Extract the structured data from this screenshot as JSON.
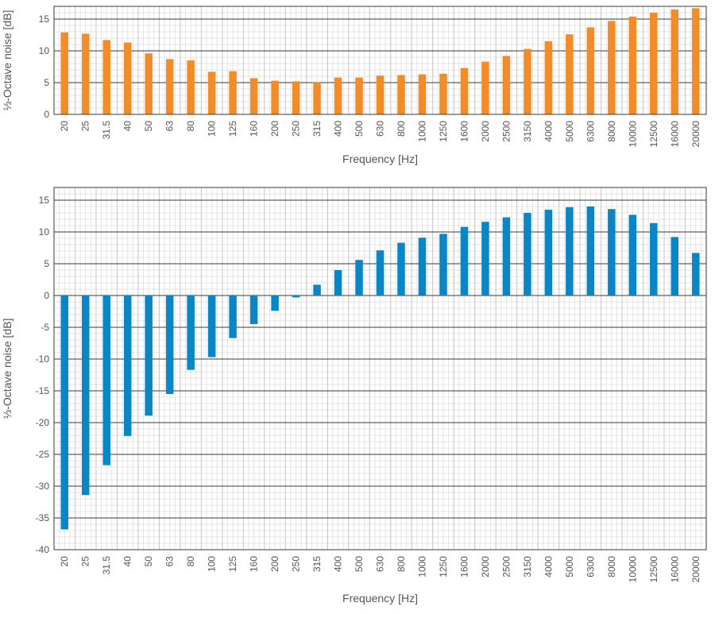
{
  "chart_data": [
    {
      "type": "bar",
      "color": "#F28C28",
      "xlabel": "Frequency [Hz]",
      "ylabel": "⅓-Octave noise [dB]",
      "ylim": [
        0,
        17
      ],
      "yticks": [
        0,
        5,
        10,
        15
      ],
      "ytick_labels": [
        "0",
        "5",
        "10",
        "15"
      ],
      "categories": [
        "20",
        "25",
        "31.5",
        "40",
        "50",
        "63",
        "80",
        "100",
        "125",
        "160",
        "200",
        "250",
        "315",
        "400",
        "500",
        "630",
        "800",
        "1000",
        "1250",
        "1600",
        "2000",
        "2500",
        "3150",
        "4000",
        "5000",
        "6300",
        "8000",
        "10000",
        "12500",
        "16000",
        "20000"
      ],
      "values": [
        12.9,
        12.7,
        11.7,
        11.3,
        9.6,
        8.7,
        8.5,
        6.7,
        6.8,
        5.7,
        5.3,
        5.2,
        5.1,
        5.8,
        5.8,
        6.1,
        6.2,
        6.3,
        6.4,
        7.3,
        8.3,
        9.2,
        10.3,
        11.5,
        12.6,
        13.7,
        14.7,
        15.4,
        16.0,
        16.5,
        16.7
      ],
      "grid": true
    },
    {
      "type": "bar",
      "color": "#0A86C6",
      "xlabel": "Frequency [Hz]",
      "ylabel": "⅓-Octave noise [dB]",
      "ylim": [
        -40,
        17
      ],
      "yticks": [
        -40,
        -35,
        -30,
        -25,
        -20,
        -15,
        -10,
        -5,
        0,
        5,
        10,
        15
      ],
      "ytick_labels": [
        "-40",
        "-35",
        "-30",
        "-25",
        "-20",
        "-15",
        "-10",
        "-5",
        "0",
        "5",
        "10",
        "15"
      ],
      "categories": [
        "20",
        "25",
        "31.5",
        "40",
        "50",
        "63",
        "80",
        "100",
        "125",
        "160",
        "200",
        "250",
        "315",
        "400",
        "500",
        "630",
        "800",
        "1000",
        "1250",
        "1600",
        "2000",
        "2500",
        "3150",
        "4000",
        "5000",
        "6300",
        "8000",
        "10000",
        "12500",
        "16000",
        "20000"
      ],
      "values": [
        -36.8,
        -31.4,
        -26.7,
        -22.1,
        -18.9,
        -15.5,
        -11.7,
        -9.7,
        -6.7,
        -4.5,
        -2.4,
        -0.3,
        1.7,
        4.0,
        5.6,
        7.1,
        8.3,
        9.1,
        9.7,
        10.8,
        11.6,
        12.3,
        13.0,
        13.5,
        13.9,
        14.0,
        13.6,
        12.7,
        11.4,
        9.2,
        6.7
      ],
      "grid": true
    }
  ]
}
